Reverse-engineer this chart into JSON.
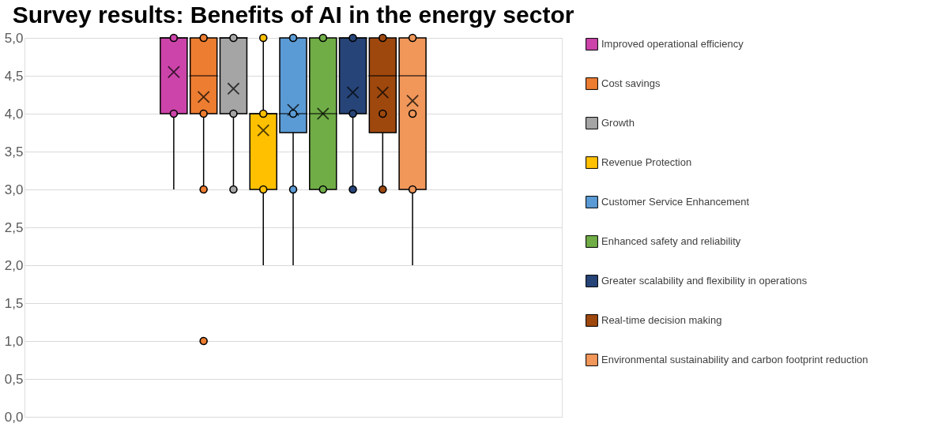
{
  "chart_data": {
    "type": "box",
    "title": "Survey results: Benefits of AI in the energy sector",
    "categories": [
      null
    ],
    "series": [
      {
        "name": "Improved operational efficiency",
        "color": "#cc44aa",
        "boxes": [
          {
            "low": 3,
            "q1": 4,
            "median": 5,
            "q3": 5,
            "high": 5,
            "mean": 4.55,
            "outliers": [
              4,
              5
            ]
          }
        ]
      },
      {
        "name": "Cost savings",
        "color": "#ed7d31",
        "boxes": [
          {
            "low": 3,
            "q1": 4,
            "median": 4.5,
            "q3": 5,
            "high": 5,
            "mean": 4.22,
            "outliers": [
              5,
              4,
              3,
              1
            ]
          }
        ]
      },
      {
        "name": "Growth",
        "color": "#a5a5a5",
        "boxes": [
          {
            "low": 3,
            "q1": 4,
            "median": 5,
            "q3": 5,
            "high": 5,
            "mean": 4.33,
            "outliers": [
              5,
              4,
              3
            ]
          }
        ]
      },
      {
        "name": "Revenue Protection",
        "color": "#ffc000",
        "boxes": [
          {
            "low": 2,
            "q1": 3,
            "median": 4,
            "q3": 4,
            "high": 5,
            "mean": 3.78,
            "outliers": [
              5,
              4,
              3
            ]
          }
        ]
      },
      {
        "name": "Customer Service Enhancement",
        "color": "#5b9bd5",
        "boxes": [
          {
            "low": 2,
            "q1": 3.75,
            "median": 4,
            "q3": 5,
            "high": 5,
            "mean": 4.05,
            "outliers": [
              5,
              4,
              3
            ]
          }
        ]
      },
      {
        "name": "Enhanced safety and reliability",
        "color": "#70ad47",
        "boxes": [
          {
            "low": 3,
            "q1": 3,
            "median": 4,
            "q3": 5,
            "high": 5,
            "mean": 4.0,
            "outliers": [
              5,
              3
            ]
          }
        ]
      },
      {
        "name": "Greater scalability and flexibility in operations",
        "color": "#264478",
        "boxes": [
          {
            "low": 3,
            "q1": 4,
            "median": 5,
            "q3": 5,
            "high": 5,
            "mean": 4.28,
            "outliers": [
              5,
              4,
              3
            ]
          }
        ]
      },
      {
        "name": "Real-time decision making",
        "color": "#9e480e",
        "boxes": [
          {
            "low": 3,
            "q1": 3.75,
            "median": 4.5,
            "q3": 5,
            "high": 5,
            "mean": 4.28,
            "outliers": [
              5,
              4,
              3
            ]
          }
        ]
      },
      {
        "name": "Environmental sustainability and carbon footprint reduction",
        "color": "#f1975a",
        "boxes": [
          {
            "low": 2,
            "q1": 3,
            "median": 4.5,
            "q3": 5,
            "high": 5,
            "mean": 4.17,
            "outliers": [
              5,
              4,
              3
            ]
          }
        ]
      }
    ],
    "ylim": [
      0,
      5
    ],
    "yticks": [
      {
        "value": 0,
        "label": "0,0"
      },
      {
        "value": 0.5,
        "label": "0,5"
      },
      {
        "value": 1,
        "label": "1,0"
      },
      {
        "value": 1.5,
        "label": "1,5"
      },
      {
        "value": 2,
        "label": "2,0"
      },
      {
        "value": 2.5,
        "label": "2,5"
      },
      {
        "value": 3,
        "label": "3,0"
      },
      {
        "value": 3.5,
        "label": "3,5"
      },
      {
        "value": 4,
        "label": "4,0"
      },
      {
        "value": 4.5,
        "label": "4,5"
      },
      {
        "value": 5,
        "label": "5,0"
      }
    ],
    "grid": "y",
    "legend": "right"
  }
}
